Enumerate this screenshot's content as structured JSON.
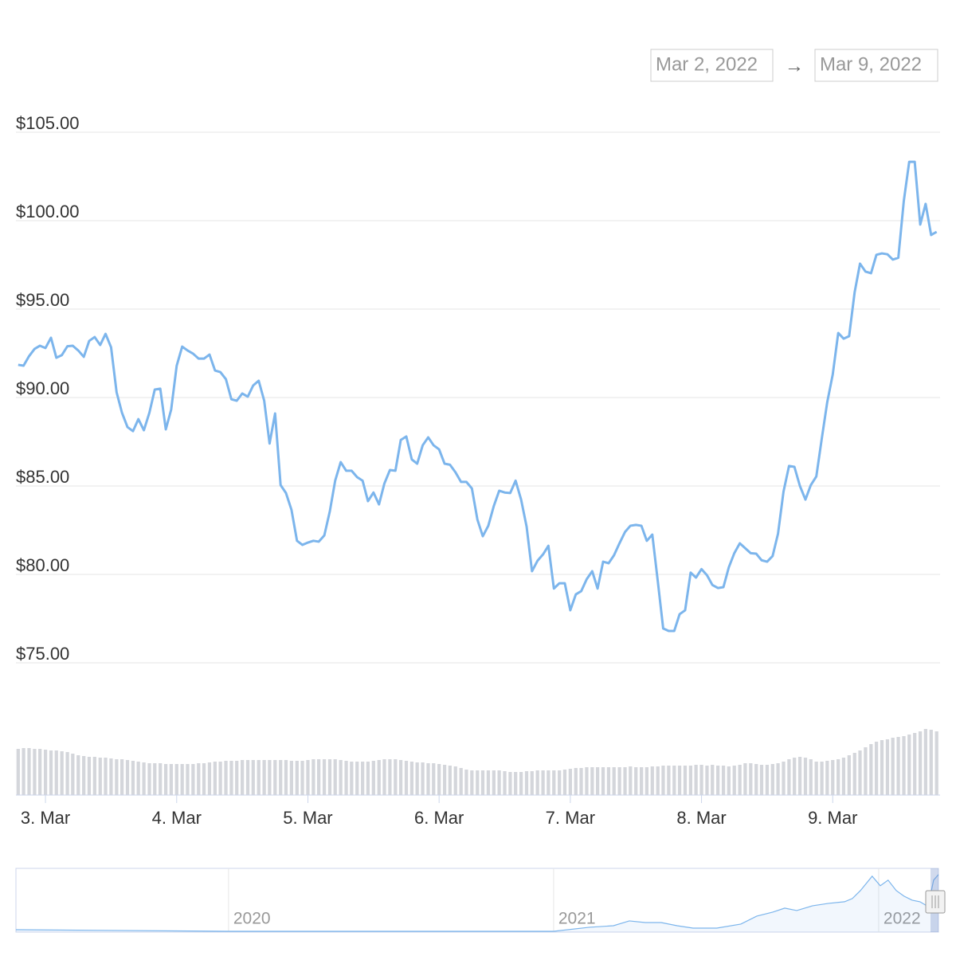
{
  "chart_data": {
    "type": "line",
    "date_from": "Mar 2, 2022",
    "date_arrow": "→",
    "date_to": "Mar 9, 2022",
    "color": "#7cb5ec",
    "xlim": [
      2.787,
      9.806
    ],
    "xticks": [
      {
        "value": 3,
        "label": "3. Mar"
      },
      {
        "value": 4,
        "label": "4. Mar"
      },
      {
        "value": 5,
        "label": "5. Mar"
      },
      {
        "value": 6,
        "label": "6. Mar"
      },
      {
        "value": 7,
        "label": "7. Mar"
      },
      {
        "value": 8,
        "label": "8. Mar"
      },
      {
        "value": 9,
        "label": "9. Mar"
      }
    ],
    "ylim": [
      75,
      105
    ],
    "yticks": [
      {
        "value": 75,
        "label": "$75.00"
      },
      {
        "value": 80,
        "label": "$80.00"
      },
      {
        "value": 85,
        "label": "$85.00"
      },
      {
        "value": 90,
        "label": "$90.00"
      },
      {
        "value": 95,
        "label": "$95.00"
      },
      {
        "value": 100,
        "label": "$100.00"
      },
      {
        "value": 105,
        "label": "$105.00"
      }
    ],
    "grid": true,
    "x": [
      2.792,
      2.833,
      2.875,
      2.917,
      2.958,
      3.0,
      3.042,
      3.083,
      3.125,
      3.167,
      3.208,
      3.25,
      3.292,
      3.333,
      3.375,
      3.417,
      3.458,
      3.5,
      3.542,
      3.583,
      3.625,
      3.667,
      3.708,
      3.75,
      3.792,
      3.833,
      3.875,
      3.917,
      3.958,
      4.0,
      4.042,
      4.083,
      4.125,
      4.167,
      4.208,
      4.25,
      4.292,
      4.333,
      4.375,
      4.417,
      4.458,
      4.5,
      4.542,
      4.583,
      4.625,
      4.667,
      4.708,
      4.75,
      4.792,
      4.833,
      4.875,
      4.917,
      4.958,
      5.0,
      5.042,
      5.083,
      5.125,
      5.167,
      5.208,
      5.25,
      5.292,
      5.333,
      5.375,
      5.417,
      5.458,
      5.5,
      5.542,
      5.583,
      5.625,
      5.667,
      5.708,
      5.75,
      5.792,
      5.833,
      5.875,
      5.917,
      5.958,
      6.0,
      6.042,
      6.083,
      6.125,
      6.167,
      6.208,
      6.25,
      6.292,
      6.333,
      6.375,
      6.417,
      6.458,
      6.5,
      6.542,
      6.583,
      6.625,
      6.667,
      6.708,
      6.75,
      6.792,
      6.833,
      6.875,
      6.917,
      6.958,
      7.0,
      7.042,
      7.083,
      7.125,
      7.167,
      7.208,
      7.25,
      7.292,
      7.333,
      7.375,
      7.417,
      7.458,
      7.5,
      7.542,
      7.583,
      7.625,
      7.667,
      7.708,
      7.75,
      7.792,
      7.833,
      7.875,
      7.917,
      7.958,
      8.0,
      8.042,
      8.083,
      8.125,
      8.167,
      8.208,
      8.25,
      8.292,
      8.333,
      8.375,
      8.417,
      8.458,
      8.5,
      8.542,
      8.583,
      8.625,
      8.667,
      8.708,
      8.75,
      8.792,
      8.833,
      8.875,
      8.917,
      8.958,
      9.0,
      9.042,
      9.083,
      9.125,
      9.167,
      9.208,
      9.25,
      9.292,
      9.333,
      9.375,
      9.417,
      9.458,
      9.5,
      9.542,
      9.583,
      9.625,
      9.667,
      9.708,
      9.75,
      9.792
    ],
    "values": [
      91.85,
      91.8,
      92.34,
      92.75,
      92.93,
      92.8,
      93.38,
      92.25,
      92.4,
      92.9,
      92.93,
      92.66,
      92.3,
      93.2,
      93.42,
      92.97,
      93.6,
      92.84,
      90.3,
      89.14,
      88.33,
      88.1,
      88.78,
      88.15,
      89.14,
      90.45,
      90.5,
      88.2,
      89.32,
      91.8,
      92.88,
      92.66,
      92.48,
      92.2,
      92.2,
      92.43,
      91.53,
      91.44,
      91.04,
      89.9,
      89.82,
      90.23,
      90.05,
      90.68,
      90.95,
      89.82,
      87.4,
      89.1,
      85.05,
      84.6,
      83.65,
      81.9,
      81.67,
      81.8,
      81.9,
      81.85,
      82.2,
      83.56,
      85.3,
      86.35,
      85.86,
      85.86,
      85.5,
      85.3,
      84.14,
      84.63,
      83.96,
      85.14,
      85.9,
      85.86,
      87.6,
      87.8,
      86.5,
      86.26,
      87.3,
      87.75,
      87.3,
      87.07,
      86.26,
      86.2,
      85.77,
      85.23,
      85.23,
      84.86,
      83.1,
      82.16,
      82.75,
      83.87,
      84.73,
      84.63,
      84.6,
      85.3,
      84.23,
      82.7,
      80.18,
      80.77,
      81.13,
      81.62,
      79.2,
      79.5,
      79.5,
      77.97,
      78.87,
      79.05,
      79.73,
      80.18,
      79.2,
      80.72,
      80.63,
      81.08,
      81.76,
      82.4,
      82.75,
      82.8,
      82.75,
      81.9,
      82.25,
      79.6,
      76.94,
      76.8,
      76.8,
      77.75,
      77.97,
      80.1,
      79.82,
      80.3,
      79.95,
      79.4,
      79.23,
      79.28,
      80.4,
      81.2,
      81.76,
      81.48,
      81.2,
      81.17,
      80.8,
      80.72,
      81.04,
      82.3,
      84.68,
      86.13,
      86.08,
      85.0,
      84.23,
      85.05,
      85.54,
      87.7,
      89.73,
      91.3,
      93.65,
      93.33,
      93.47,
      95.95,
      97.57,
      97.12,
      97.03,
      98.07,
      98.15,
      98.1,
      97.8,
      97.9,
      101.13,
      103.33,
      103.33,
      99.78,
      100.95,
      99.19,
      99.37
    ],
    "volume_color": "#d4d6db",
    "volume_ylim": [
      0,
      100
    ],
    "volume": [
      58,
      59,
      59,
      58,
      58,
      57,
      56,
      56,
      55,
      54,
      52,
      50,
      49,
      48,
      48,
      47,
      47,
      46,
      45,
      45,
      44,
      43,
      42,
      41,
      40,
      40,
      40,
      39,
      39,
      39,
      39,
      39,
      39,
      40,
      40,
      41,
      42,
      42,
      43,
      43,
      43,
      44,
      44,
      44,
      44,
      44,
      44,
      44,
      44,
      44,
      43,
      43,
      43,
      44,
      45,
      45,
      45,
      45,
      45,
      44,
      43,
      42,
      42,
      42,
      42,
      43,
      44,
      45,
      45,
      45,
      44,
      43,
      42,
      41,
      41,
      40,
      40,
      39,
      38,
      37,
      36,
      34,
      32,
      31,
      31,
      31,
      31,
      31,
      31,
      30,
      29,
      29,
      29,
      30,
      30,
      31,
      31,
      31,
      31,
      31,
      32,
      33,
      34,
      34,
      35,
      35,
      35,
      35,
      35,
      35,
      35,
      35,
      36,
      35,
      35,
      35,
      36,
      36,
      37,
      37,
      37,
      37,
      37,
      37,
      38,
      38,
      37,
      38,
      37,
      37,
      36,
      37,
      38,
      40,
      40,
      39,
      38,
      38,
      39,
      40,
      42,
      45,
      47,
      48,
      47,
      45,
      42,
      42,
      43,
      44,
      45,
      47,
      50,
      53,
      56,
      60,
      64,
      67,
      69,
      70,
      72,
      73,
      74,
      76,
      78,
      80,
      83,
      82,
      80
    ],
    "navigator": {
      "xlim": [
        2019.346,
        2022.184
      ],
      "ylim": [
        0,
        114
      ],
      "xticks": [
        2020,
        2021,
        2022
      ],
      "x": [
        2019.346,
        2020,
        2021,
        2021.11,
        2021.184,
        2021.233,
        2021.282,
        2021.331,
        2021.38,
        2021.429,
        2021.502,
        2021.576,
        2021.625,
        2021.674,
        2021.711,
        2021.748,
        2021.797,
        2021.846,
        2021.895,
        2021.919,
        2021.944,
        2021.98,
        2022.005,
        2022.029,
        2022.054,
        2022.078,
        2022.103,
        2022.127,
        2022.152,
        2022.169,
        2022.184
      ],
      "values": [
        4.3,
        1.4,
        1.4,
        8.6,
        11.4,
        20,
        17.1,
        17.1,
        11.4,
        7.1,
        7.1,
        14.3,
        28.6,
        35.7,
        42.9,
        38.6,
        47.1,
        51.4,
        54.3,
        60,
        74.3,
        100,
        82.9,
        92.9,
        74.3,
        64.3,
        57.1,
        54.3,
        45.7,
        92.9,
        102.9
      ]
    }
  }
}
